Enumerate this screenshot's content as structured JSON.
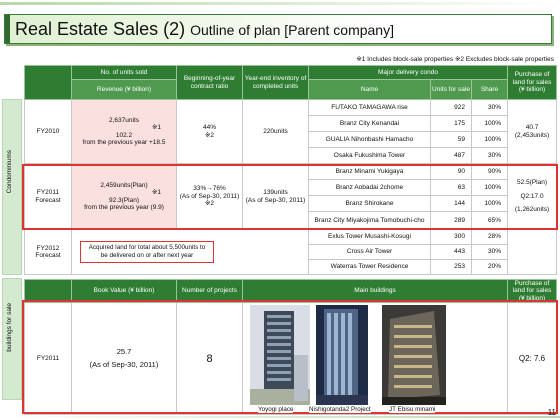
{
  "title": {
    "main": "Real Estate Sales (2) ",
    "rest": "Outline of plan [Parent company]"
  },
  "footnote": "※1 Includes block-sale properties ※2 Excludes block-sale properties",
  "side_labels": {
    "condo": "Condominiums",
    "buildings": "buildings for sale"
  },
  "condo_header": {
    "units_sold": "No. of units sold",
    "revenue": "Revenue (¥ billion)",
    "contract_ratio": "Beginning-of-year contract ratio",
    "inventory": "Year-end inventory of completed units",
    "major_delivery": "Major delivery condo",
    "name": "Name",
    "units_for_sale": "Units for sale",
    "share": "Share",
    "purchase_land": "Purchase of land for sales (¥ billion)"
  },
  "fy2010": {
    "label": "FY2010",
    "units": "2,637units",
    "mark1": "※1",
    "revenue": "102.2",
    "revenue_note": "from the previous year +18.5",
    "ratio": "44%",
    "ratio_note": "※2",
    "inventory": "220units",
    "purchase": "40.7",
    "purchase_units": "(2,453units)",
    "condos": [
      {
        "name": "FUTAKO TAMAGAWA rise",
        "units": "922",
        "share": "30%"
      },
      {
        "name": "Branz City Kenandai",
        "units": "175",
        "share": "100%"
      },
      {
        "name": "GUALIA Nihonbashi Hamacho",
        "units": "59",
        "share": "100%"
      },
      {
        "name": "Osaka Fukushima Tower",
        "units": "487",
        "share": "30%"
      }
    ]
  },
  "fy2011": {
    "label": "FY2011 Forecast",
    "units": "2,459units(Plan)",
    "mark1": "※1",
    "revenue": "92.3(Plan)",
    "revenue_note": "from the previous year (9.9)",
    "ratio": "33%→76%",
    "ratio_date": "(As of Sep-30, 2011)",
    "ratio_note": "※2",
    "inventory": "139units",
    "inventory_date": "(As of Sep-30, 2011)",
    "purchase_plan": "52.5(Plan)",
    "purchase_q2": "Q2:17.0",
    "purchase_units": "(1,262units)",
    "condos": [
      {
        "name": "Branz Minami Yukigaya",
        "units": "90",
        "share": "90%"
      },
      {
        "name": "Branz Aobadai 2chome",
        "units": "63",
        "units2": "",
        "share": "100%"
      },
      {
        "name": "Branz Shirokane",
        "units": "144",
        "share": "100%"
      },
      {
        "name": "Branz City Miyakojima Tomobuchi-cho",
        "units": "289",
        "share": "65%"
      }
    ]
  },
  "fy2012": {
    "label": "FY2012 Forecast",
    "note": "Acquired land for total about 5,500units to be delivered on or after next year",
    "condos": [
      {
        "name": "Exlus Tower Musashi-Kosugi",
        "units": "300",
        "share": "28%"
      },
      {
        "name": "Cross Air Tower",
        "units": "443",
        "share": "30%"
      },
      {
        "name": "Waterras Tower Residence",
        "units": "253",
        "share": "20%"
      }
    ]
  },
  "bld_header": {
    "book_value": "Book Value (¥ billion)",
    "projects": "Number of projects",
    "main_buildings": "Main buildings",
    "purchase_land": "Purchase of land for sales (¥ billion)"
  },
  "bld_fy2011": {
    "label": "FY2011",
    "book_value": "25.7",
    "book_date": "(As of Sep-30, 2011)",
    "projects": "8",
    "purchase": "Q2: 7.6",
    "buildings": [
      "Yoyogi place",
      "Nishigotanda2 Project",
      "JT Ebisu minami"
    ]
  },
  "page_number": "11",
  "colors": {
    "header_green": "#2e7d32",
    "accent_red": "#d33333",
    "pink": "#fbe0e0"
  }
}
